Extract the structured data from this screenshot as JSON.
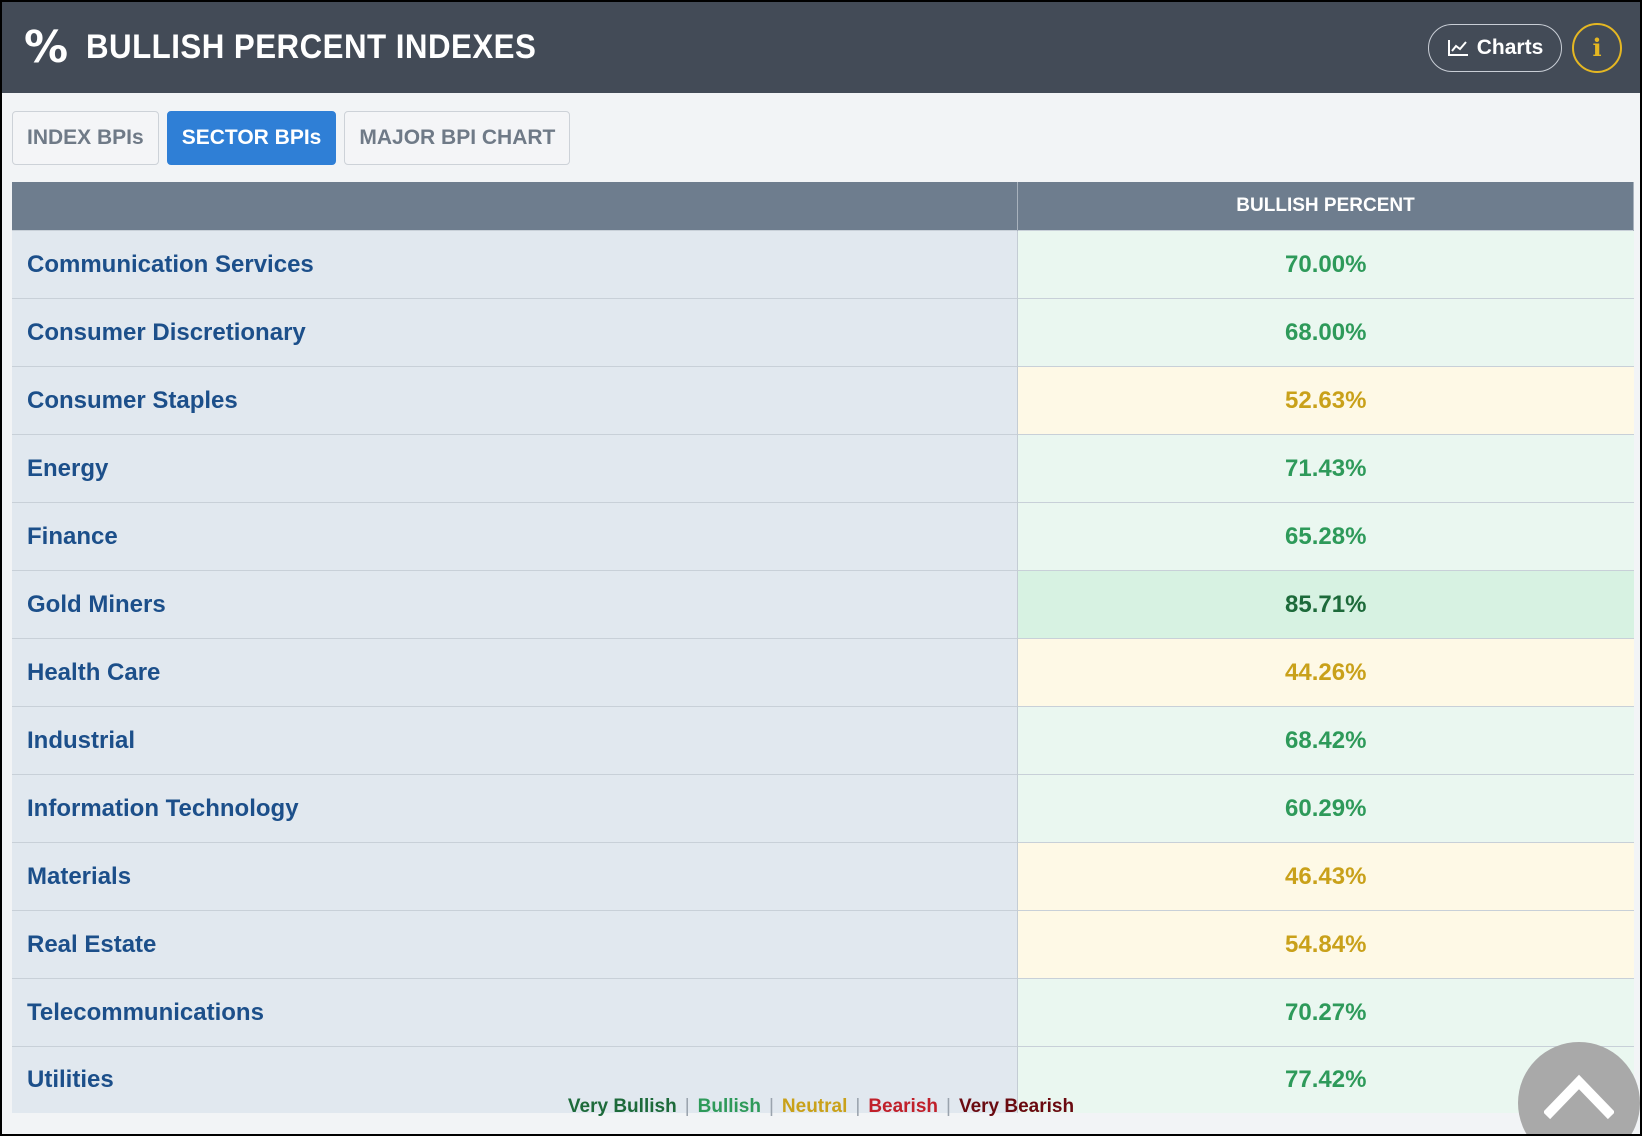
{
  "header": {
    "title": "BULLISH PERCENT INDEXES",
    "charts_label": "Charts",
    "info_label": "i"
  },
  "tabs": [
    {
      "label": "INDEX BPIs",
      "active": false
    },
    {
      "label": "SECTOR BPIs",
      "active": true
    },
    {
      "label": "MAJOR BPI CHART",
      "active": false
    }
  ],
  "table": {
    "column_header": "BULLISH PERCENT",
    "rows": [
      {
        "name": "Communication Services",
        "value": "70.00%",
        "level": "bullish"
      },
      {
        "name": "Consumer Discretionary",
        "value": "68.00%",
        "level": "bullish"
      },
      {
        "name": "Consumer Staples",
        "value": "52.63%",
        "level": "neutral"
      },
      {
        "name": "Energy",
        "value": "71.43%",
        "level": "bullish"
      },
      {
        "name": "Finance",
        "value": "65.28%",
        "level": "bullish"
      },
      {
        "name": "Gold Miners",
        "value": "85.71%",
        "level": "very-bullish"
      },
      {
        "name": "Health Care",
        "value": "44.26%",
        "level": "neutral"
      },
      {
        "name": "Industrial",
        "value": "68.42%",
        "level": "bullish"
      },
      {
        "name": "Information Technology",
        "value": "60.29%",
        "level": "bullish"
      },
      {
        "name": "Materials",
        "value": "46.43%",
        "level": "neutral"
      },
      {
        "name": "Real Estate",
        "value": "54.84%",
        "level": "neutral"
      },
      {
        "name": "Telecommunications",
        "value": "70.27%",
        "level": "bullish"
      },
      {
        "name": "Utilities",
        "value": "77.42%",
        "level": "bullish"
      }
    ]
  },
  "legend": [
    {
      "label": "Very Bullish",
      "color": "#1d6a3a"
    },
    {
      "label": "Bullish",
      "color": "#2e9a5a"
    },
    {
      "label": "Neutral",
      "color": "#c9a11a"
    },
    {
      "label": "Bearish",
      "color": "#c0202a"
    },
    {
      "label": "Very Bearish",
      "color": "#6a0a10"
    }
  ],
  "icons": {
    "header": "percent-icon",
    "charts": "line-chart-icon",
    "info": "info-icon",
    "scroll": "chevron-up-icon"
  }
}
